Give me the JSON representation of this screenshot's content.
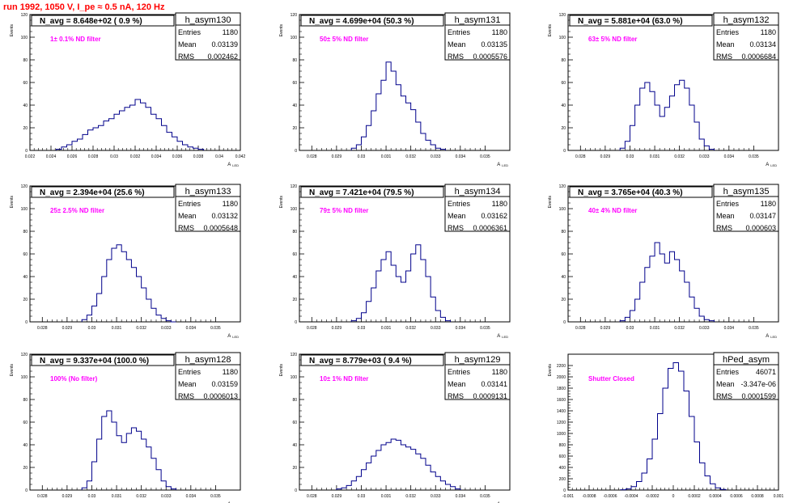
{
  "run_title": "run 1992,  1050 V, I_pe ≈ 0.5 nA, 120 Hz",
  "colors": {
    "title": "#ff0000",
    "note": "#ff00ff",
    "histogram": "#00008b",
    "axis": "#000000"
  },
  "chart_data": [
    {
      "type": "histogram",
      "name": "h_asym130",
      "title": "N_avg = 8.648e+02 ( 0.9 %)",
      "note": "1± 0.1% ND filter",
      "ylabel": "Events",
      "xlabel": "A_LED",
      "stats": [
        [
          "Entries",
          "1180"
        ],
        [
          "Mean",
          "0.03139"
        ],
        [
          "RMS",
          "0.002462"
        ]
      ],
      "xlim": [
        0.022,
        0.042
      ],
      "ylim": [
        0,
        120
      ],
      "xticks": [
        "0.022",
        "0.024",
        "0.026",
        "0.028",
        "0.03",
        "0.032",
        "0.034",
        "0.036",
        "0.038",
        "0.04",
        "0.042"
      ],
      "yticks": [
        "0",
        "20",
        "40",
        "60",
        "80",
        "100",
        "120"
      ],
      "x": [
        0.0245,
        0.025,
        0.0255,
        0.026,
        0.0265,
        0.027,
        0.0275,
        0.028,
        0.0285,
        0.029,
        0.0295,
        0.03,
        0.0305,
        0.031,
        0.0315,
        0.032,
        0.0325,
        0.033,
        0.0335,
        0.034,
        0.0345,
        0.035,
        0.0355,
        0.036,
        0.0365,
        0.037,
        0.0375,
        0.038
      ],
      "y": [
        1,
        3,
        5,
        8,
        10,
        14,
        18,
        20,
        22,
        26,
        28,
        32,
        35,
        38,
        40,
        45,
        42,
        38,
        32,
        28,
        22,
        16,
        12,
        8,
        5,
        3,
        2,
        1
      ]
    },
    {
      "type": "histogram",
      "name": "h_asym131",
      "title": "N_avg = 4.699e+04 (50.3 %)",
      "note": "50± 5% ND filter",
      "ylabel": "Events",
      "xlabel": "A_LED",
      "stats": [
        [
          "Entries",
          "1180"
        ],
        [
          "Mean",
          "0.03135"
        ],
        [
          "RMS",
          "0.0005576"
        ]
      ],
      "xlim": [
        0.0275,
        0.036
      ],
      "ylim": [
        0,
        120
      ],
      "xticks": [
        "0.028",
        "0.029",
        "0.03",
        "0.031",
        "0.032",
        "0.033",
        "0.034",
        "0.035"
      ],
      "yticks": [
        "0",
        "20",
        "40",
        "60",
        "80",
        "100",
        "120"
      ],
      "x": [
        0.0296,
        0.0298,
        0.03,
        0.0302,
        0.0304,
        0.0306,
        0.0308,
        0.031,
        0.0312,
        0.0314,
        0.0316,
        0.0318,
        0.032,
        0.0322,
        0.0324,
        0.0326,
        0.0328,
        0.033,
        0.0332
      ],
      "y": [
        2,
        5,
        12,
        22,
        35,
        50,
        62,
        78,
        70,
        58,
        48,
        42,
        36,
        25,
        15,
        9,
        5,
        2,
        1
      ]
    },
    {
      "type": "histogram",
      "name": "h_asym132",
      "title": "N_avg = 5.881e+04 (63.0 %)",
      "note": "63± 5% ND filter",
      "ylabel": "Events",
      "xlabel": "A_LED",
      "stats": [
        [
          "Entries",
          "1180"
        ],
        [
          "Mean",
          "0.03134"
        ],
        [
          "RMS",
          "0.0006684"
        ]
      ],
      "xlim": [
        0.0275,
        0.036
      ],
      "ylim": [
        0,
        120
      ],
      "xticks": [
        "0.028",
        "0.029",
        "0.03",
        "0.031",
        "0.032",
        "0.033",
        "0.034",
        "0.035"
      ],
      "yticks": [
        "0",
        "20",
        "40",
        "60",
        "80",
        "100",
        "120"
      ],
      "x": [
        0.0296,
        0.0298,
        0.03,
        0.0302,
        0.0304,
        0.0306,
        0.0308,
        0.031,
        0.0312,
        0.0314,
        0.0316,
        0.0318,
        0.032,
        0.0322,
        0.0324,
        0.0326,
        0.0328,
        0.033,
        0.0332
      ],
      "y": [
        2,
        8,
        22,
        40,
        55,
        60,
        52,
        40,
        30,
        38,
        48,
        58,
        62,
        55,
        40,
        25,
        10,
        4,
        1
      ]
    },
    {
      "type": "histogram",
      "name": "h_asym133",
      "title": "N_avg = 2.394e+04 (25.6 %)",
      "note": "25± 2.5% ND filter",
      "ylabel": "Events",
      "xlabel": "A_LED",
      "stats": [
        [
          "Entries",
          "1180"
        ],
        [
          "Mean",
          "0.03132"
        ],
        [
          "RMS",
          "0.0005648"
        ]
      ],
      "xlim": [
        0.0275,
        0.036
      ],
      "ylim": [
        0,
        120
      ],
      "xticks": [
        "0.028",
        "0.029",
        "0.03",
        "0.031",
        "0.032",
        "0.033",
        "0.034",
        "0.035"
      ],
      "yticks": [
        "0",
        "20",
        "40",
        "60",
        "80",
        "100",
        "120"
      ],
      "x": [
        0.0296,
        0.0298,
        0.03,
        0.0302,
        0.0304,
        0.0306,
        0.0308,
        0.031,
        0.0312,
        0.0314,
        0.0316,
        0.0318,
        0.032,
        0.0322,
        0.0324,
        0.0326,
        0.0328,
        0.033,
        0.0332
      ],
      "y": [
        2,
        6,
        14,
        25,
        40,
        55,
        65,
        68,
        62,
        55,
        48,
        40,
        30,
        20,
        12,
        6,
        3,
        1,
        0
      ]
    },
    {
      "type": "histogram",
      "name": "h_asym134",
      "title": "N_avg = 7.421e+04 (79.5 %)",
      "note": "79± 5% ND filter",
      "ylabel": "Events",
      "xlabel": "A_LED",
      "stats": [
        [
          "Entries",
          "1180"
        ],
        [
          "Mean",
          "0.03162"
        ],
        [
          "RMS",
          "0.0006361"
        ]
      ],
      "xlim": [
        0.0275,
        0.036
      ],
      "ylim": [
        0,
        120
      ],
      "xticks": [
        "0.028",
        "0.029",
        "0.03",
        "0.031",
        "0.032",
        "0.033",
        "0.034",
        "0.035"
      ],
      "yticks": [
        "0",
        "20",
        "40",
        "60",
        "80",
        "100",
        "120"
      ],
      "x": [
        0.0296,
        0.0298,
        0.03,
        0.0302,
        0.0304,
        0.0306,
        0.0308,
        0.031,
        0.0312,
        0.0314,
        0.0316,
        0.0318,
        0.032,
        0.0322,
        0.0324,
        0.0326,
        0.0328,
        0.033,
        0.0332,
        0.0334
      ],
      "y": [
        1,
        3,
        8,
        18,
        30,
        45,
        55,
        62,
        50,
        40,
        35,
        45,
        60,
        68,
        55,
        40,
        22,
        10,
        4,
        1
      ]
    },
    {
      "type": "histogram",
      "name": "h_asym135",
      "title": "N_avg = 3.765e+04 (40.3 %)",
      "note": "40± 4% ND filter",
      "ylabel": "Events",
      "xlabel": "A_LED",
      "stats": [
        [
          "Entries",
          "1180"
        ],
        [
          "Mean",
          "0.03147"
        ],
        [
          "RMS",
          "0.000603"
        ]
      ],
      "xlim": [
        0.0275,
        0.036
      ],
      "ylim": [
        0,
        120
      ],
      "xticks": [
        "0.028",
        "0.029",
        "0.03",
        "0.031",
        "0.032",
        "0.033",
        "0.034",
        "0.035"
      ],
      "yticks": [
        "0",
        "20",
        "40",
        "60",
        "80",
        "100",
        "120"
      ],
      "x": [
        0.0296,
        0.0298,
        0.03,
        0.0302,
        0.0304,
        0.0306,
        0.0308,
        0.031,
        0.0312,
        0.0314,
        0.0316,
        0.0318,
        0.032,
        0.0322,
        0.0324,
        0.0326,
        0.0328,
        0.033,
        0.0332
      ],
      "y": [
        1,
        4,
        10,
        20,
        35,
        48,
        58,
        70,
        60,
        52,
        62,
        55,
        45,
        35,
        22,
        12,
        5,
        2,
        1
      ]
    },
    {
      "type": "histogram",
      "name": "h_asym128",
      "title": "N_avg = 9.337e+04 (100.0 %)",
      "note": "100% (No filter)",
      "ylabel": "Events",
      "xlabel": "A_LED",
      "stats": [
        [
          "Entries",
          "1180"
        ],
        [
          "Mean",
          "0.03159"
        ],
        [
          "RMS",
          "0.0006013"
        ]
      ],
      "xlim": [
        0.0275,
        0.036
      ],
      "ylim": [
        0,
        120
      ],
      "xticks": [
        "0.028",
        "0.029",
        "0.03",
        "0.031",
        "0.032",
        "0.033",
        "0.034",
        "0.035"
      ],
      "yticks": [
        "0",
        "20",
        "40",
        "60",
        "80",
        "100",
        "120"
      ],
      "x": [
        0.0296,
        0.0298,
        0.03,
        0.0302,
        0.0304,
        0.0306,
        0.0308,
        0.031,
        0.0312,
        0.0314,
        0.0316,
        0.0318,
        0.032,
        0.0322,
        0.0324,
        0.0326,
        0.0328,
        0.033,
        0.0332
      ],
      "y": [
        2,
        8,
        25,
        45,
        65,
        70,
        60,
        48,
        42,
        50,
        55,
        52,
        45,
        38,
        28,
        18,
        8,
        3,
        1
      ]
    },
    {
      "type": "histogram",
      "name": "h_asym129",
      "title": "N_avg = 8.779e+03 ( 9.4 %)",
      "note": "10± 1% ND filter",
      "ylabel": "Events",
      "xlabel": "A_LED",
      "stats": [
        [
          "Entries",
          "1180"
        ],
        [
          "Mean",
          "0.03141"
        ],
        [
          "RMS",
          "0.0009131"
        ]
      ],
      "xlim": [
        0.0275,
        0.036
      ],
      "ylim": [
        0,
        120
      ],
      "xticks": [
        "0.028",
        "0.029",
        "0.03",
        "0.031",
        "0.032",
        "0.033",
        "0.034",
        "0.035"
      ],
      "yticks": [
        "0",
        "20",
        "40",
        "60",
        "80",
        "100",
        "120"
      ],
      "x": [
        0.029,
        0.0292,
        0.0294,
        0.0296,
        0.0298,
        0.03,
        0.0302,
        0.0304,
        0.0306,
        0.0308,
        0.031,
        0.0312,
        0.0314,
        0.0316,
        0.0318,
        0.032,
        0.0322,
        0.0324,
        0.0326,
        0.0328,
        0.033,
        0.0332,
        0.0334,
        0.0336,
        0.0338
      ],
      "y": [
        1,
        2,
        4,
        8,
        12,
        18,
        24,
        30,
        35,
        40,
        42,
        45,
        44,
        40,
        38,
        36,
        32,
        28,
        22,
        16,
        12,
        8,
        5,
        3,
        1
      ]
    },
    {
      "type": "histogram",
      "name": "hPed_asym",
      "title": "",
      "note": "Shutter Closed",
      "ylabel": "Events",
      "xlabel": "",
      "stats": [
        [
          "Entries",
          "46071"
        ],
        [
          "Mean",
          "-3.347e-06"
        ],
        [
          "RMS",
          "0.0001599"
        ]
      ],
      "xlim": [
        -0.001,
        0.001
      ],
      "ylim": [
        0,
        2400
      ],
      "xticks": [
        "-0.001",
        "-0.0008",
        "-0.0006",
        "-0.0004",
        "-0.0002",
        "0",
        "0.0002",
        "0.0004",
        "0.0006",
        "0.0008",
        "0.001"
      ],
      "yticks": [
        "0",
        "200",
        "400",
        "600",
        "800",
        "1000",
        "1200",
        "1400",
        "1600",
        "1800",
        "2000",
        "2200"
      ],
      "x": [
        -0.0005,
        -0.00045,
        -0.0004,
        -0.00035,
        -0.0003,
        -0.00025,
        -0.0002,
        -0.00015,
        -0.0001,
        -5e-05,
        0.0,
        5e-05,
        0.0001,
        0.00015,
        0.0002,
        0.00025,
        0.0003,
        0.00035,
        0.0004,
        0.00045
      ],
      "y": [
        5,
        20,
        60,
        150,
        300,
        550,
        900,
        1350,
        1800,
        2150,
        2250,
        2100,
        1750,
        1300,
        850,
        480,
        250,
        110,
        40,
        10
      ]
    }
  ]
}
